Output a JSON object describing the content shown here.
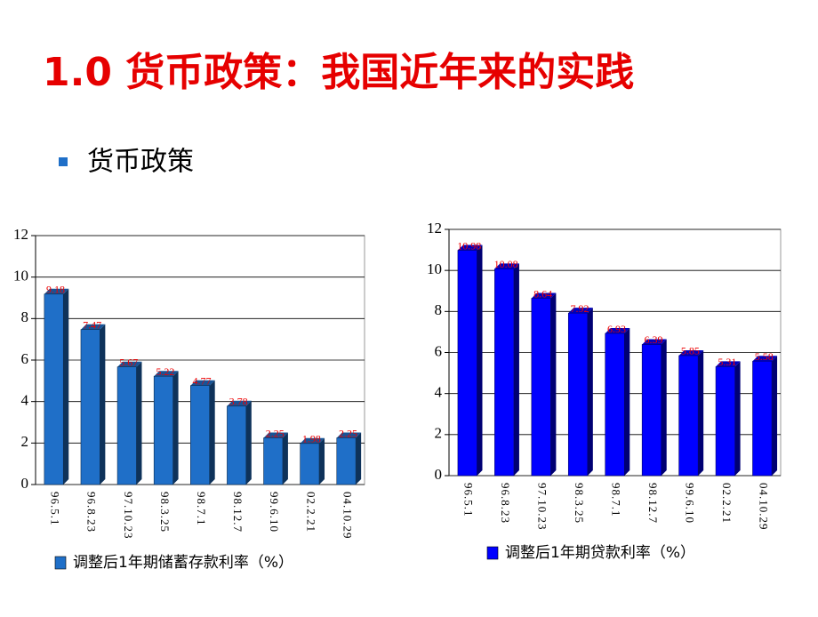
{
  "title": "1.0 货币政策：我国近年来的实践",
  "bullet": "货币政策",
  "chart_data": [
    {
      "type": "bar",
      "categories": [
        "96.5.1",
        "96.8.23",
        "97.10.23",
        "98.3.25",
        "98.7.1",
        "98.12.7",
        "99.6.10",
        "02.2.21",
        "04.10.29"
      ],
      "series": [
        {
          "name": "调整后1年期储蓄存款利率（%）",
          "color": "#1f6fc8",
          "values": [
            9.18,
            7.47,
            5.67,
            5.22,
            4.77,
            3.78,
            2.25,
            1.98,
            2.25
          ]
        }
      ],
      "ylim": [
        0,
        12
      ],
      "yticks": [
        0,
        2,
        4,
        6,
        8,
        10,
        12
      ],
      "grid": true,
      "legend": "bottom"
    },
    {
      "type": "bar",
      "categories": [
        "96.5.1",
        "96.8.23",
        "97.10.23",
        "98.3.25",
        "98.7.1",
        "98.12.7",
        "99.6.10",
        "02.2.21",
        "04.10.29"
      ],
      "series": [
        {
          "name": "调整后1年期贷款利率（%）",
          "color": "#0000ff",
          "values": [
            10.98,
            10.08,
            8.64,
            7.92,
            6.93,
            6.39,
            5.85,
            5.31,
            5.58
          ]
        }
      ],
      "ylim": [
        0,
        12
      ],
      "yticks": [
        0,
        2,
        4,
        6,
        8,
        10,
        12
      ],
      "grid": true,
      "legend": "bottom"
    }
  ]
}
